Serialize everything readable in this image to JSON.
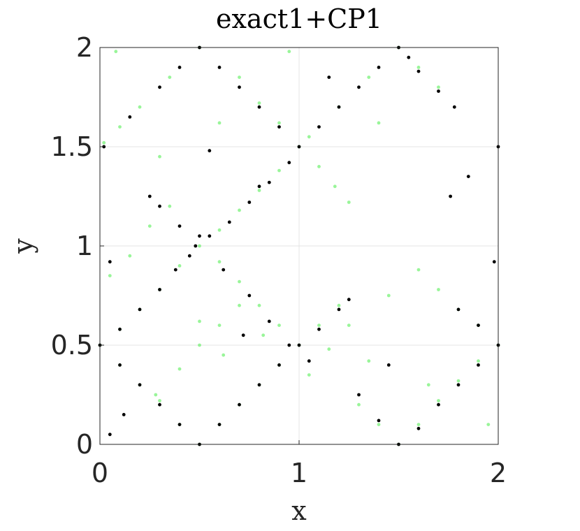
{
  "chart_data": {
    "type": "scatter",
    "title": "exact1+CP1",
    "xlabel": "x",
    "ylabel": "y",
    "xlim": [
      0,
      2
    ],
    "ylim": [
      0,
      2
    ],
    "xticks": [
      0,
      1,
      2
    ],
    "yticks": [
      0,
      0.5,
      1,
      1.5,
      2
    ],
    "xtick_labels": [
      "0",
      "1",
      "2"
    ],
    "ytick_labels": [
      "0",
      "0.5",
      "1",
      "1.5",
      "2"
    ],
    "grid": true,
    "legend": "none",
    "series": [
      {
        "color": "#55ee55",
        "values": [
          [
            0.5,
            2.0
          ],
          [
            0.35,
            1.85
          ],
          [
            0.2,
            1.7
          ],
          [
            0.1,
            1.6
          ],
          [
            0.02,
            1.52
          ],
          [
            0.7,
            1.85
          ],
          [
            0.8,
            1.72
          ],
          [
            0.9,
            1.62
          ],
          [
            1.0,
            1.5
          ],
          [
            1.1,
            1.4
          ],
          [
            1.18,
            1.3
          ],
          [
            1.25,
            1.22
          ],
          [
            1.05,
            1.55
          ],
          [
            1.2,
            1.7
          ],
          [
            1.35,
            1.85
          ],
          [
            1.5,
            2.0
          ],
          [
            1.6,
            1.9
          ],
          [
            1.7,
            1.8
          ],
          [
            0.9,
            1.38
          ],
          [
            0.8,
            1.28
          ],
          [
            0.7,
            1.18
          ],
          [
            0.6,
            1.08
          ],
          [
            0.5,
            1.0
          ],
          [
            0.4,
            0.9
          ],
          [
            0.3,
            0.78
          ],
          [
            0.2,
            0.68
          ],
          [
            0.1,
            0.58
          ],
          [
            0.0,
            0.5
          ],
          [
            0.1,
            0.4
          ],
          [
            0.2,
            0.3
          ],
          [
            0.3,
            0.22
          ],
          [
            0.4,
            0.1
          ],
          [
            0.5,
            0.0
          ],
          [
            0.6,
            0.1
          ],
          [
            0.7,
            0.2
          ],
          [
            0.8,
            0.3
          ],
          [
            0.9,
            0.4
          ],
          [
            1.0,
            0.5
          ],
          [
            1.1,
            0.6
          ],
          [
            1.2,
            0.7
          ],
          [
            0.7,
            0.82
          ],
          [
            0.8,
            0.7
          ],
          [
            0.9,
            0.6
          ],
          [
            0.6,
            0.92
          ],
          [
            0.28,
            0.25
          ],
          [
            0.4,
            0.38
          ],
          [
            0.5,
            0.5
          ],
          [
            0.6,
            0.6
          ],
          [
            0.7,
            0.7
          ],
          [
            1.3,
            0.2
          ],
          [
            1.4,
            0.1
          ],
          [
            1.5,
            0.0
          ],
          [
            1.6,
            0.1
          ],
          [
            1.7,
            0.22
          ],
          [
            1.8,
            0.32
          ],
          [
            1.9,
            0.42
          ],
          [
            2.0,
            0.5
          ],
          [
            1.9,
            0.6
          ],
          [
            1.8,
            0.68
          ],
          [
            1.7,
            0.78
          ],
          [
            1.6,
            0.88
          ],
          [
            1.05,
            0.35
          ],
          [
            1.15,
            0.48
          ],
          [
            1.25,
            0.6
          ],
          [
            1.35,
            0.42
          ],
          [
            0.15,
            0.95
          ],
          [
            0.05,
            0.85
          ],
          [
            0.25,
            1.1
          ],
          [
            0.35,
            1.2
          ],
          [
            0.62,
            0.45
          ],
          [
            0.5,
            0.62
          ],
          [
            0.82,
            0.55
          ],
          [
            1.45,
            0.75
          ],
          [
            1.65,
            0.3
          ],
          [
            1.95,
            0.1
          ],
          [
            0.08,
            1.98
          ],
          [
            0.95,
            1.98
          ],
          [
            1.4,
            1.62
          ],
          [
            0.3,
            1.45
          ],
          [
            0.6,
            1.62
          ]
        ]
      },
      {
        "color": "#000000",
        "values": [
          [
            0.5,
            2.0
          ],
          [
            0.4,
            1.9
          ],
          [
            0.3,
            1.8
          ],
          [
            0.15,
            1.65
          ],
          [
            0.02,
            1.5
          ],
          [
            0.6,
            1.9
          ],
          [
            0.7,
            1.8
          ],
          [
            0.8,
            1.7
          ],
          [
            0.9,
            1.6
          ],
          [
            1.0,
            1.5
          ],
          [
            1.1,
            1.6
          ],
          [
            1.2,
            1.7
          ],
          [
            1.3,
            1.8
          ],
          [
            1.4,
            1.9
          ],
          [
            1.5,
            2.0
          ],
          [
            1.55,
            1.95
          ],
          [
            1.6,
            1.88
          ],
          [
            1.7,
            1.78
          ],
          [
            1.78,
            1.7
          ],
          [
            0.95,
            1.42
          ],
          [
            0.85,
            1.32
          ],
          [
            0.75,
            1.22
          ],
          [
            0.65,
            1.12
          ],
          [
            0.55,
            1.05
          ],
          [
            0.48,
            1.0
          ],
          [
            0.45,
            0.95
          ],
          [
            0.5,
            1.05
          ],
          [
            0.4,
            1.1
          ],
          [
            0.3,
            1.2
          ],
          [
            0.25,
            1.25
          ],
          [
            0.38,
            0.88
          ],
          [
            0.3,
            0.78
          ],
          [
            0.2,
            0.68
          ],
          [
            0.1,
            0.58
          ],
          [
            0.0,
            0.5
          ],
          [
            0.1,
            0.4
          ],
          [
            0.2,
            0.3
          ],
          [
            0.3,
            0.2
          ],
          [
            0.4,
            0.1
          ],
          [
            0.5,
            0.0
          ],
          [
            0.6,
            0.1
          ],
          [
            0.7,
            0.2
          ],
          [
            0.8,
            0.3
          ],
          [
            0.9,
            0.4
          ],
          [
            1.0,
            0.5
          ],
          [
            1.1,
            0.58
          ],
          [
            1.2,
            0.68
          ],
          [
            1.25,
            0.73
          ],
          [
            0.85,
            0.62
          ],
          [
            0.75,
            0.75
          ],
          [
            0.62,
            0.88
          ],
          [
            1.3,
            0.25
          ],
          [
            1.4,
            0.12
          ],
          [
            1.5,
            0.0
          ],
          [
            1.6,
            0.08
          ],
          [
            1.7,
            0.2
          ],
          [
            1.8,
            0.3
          ],
          [
            1.9,
            0.4
          ],
          [
            2.0,
            0.5
          ],
          [
            1.9,
            0.6
          ],
          [
            1.8,
            0.68
          ],
          [
            1.76,
            1.25
          ],
          [
            1.85,
            1.35
          ],
          [
            2.0,
            1.5
          ],
          [
            0.72,
            0.55
          ],
          [
            0.95,
            0.5
          ],
          [
            1.05,
            0.42
          ],
          [
            0.8,
            1.3
          ],
          [
            1.15,
            1.85
          ],
          [
            0.05,
            0.92
          ],
          [
            0.12,
            0.15
          ],
          [
            0.05,
            0.05
          ],
          [
            1.98,
            0.92
          ],
          [
            1.45,
            0.4
          ],
          [
            0.55,
            1.48
          ]
        ]
      }
    ]
  }
}
